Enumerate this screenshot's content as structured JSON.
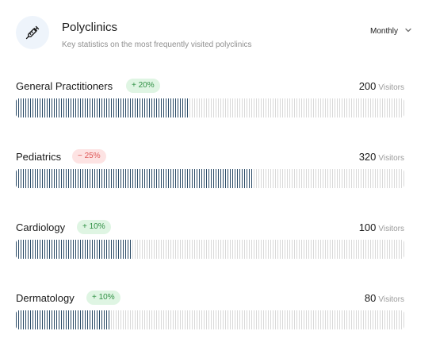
{
  "header": {
    "title": "Polyclinics",
    "subtitle": "Key statistics on the most frequently visited polyclinics",
    "icon": "syringe-icon",
    "period": "Monthly"
  },
  "colors": {
    "bar_fill": "#2b4b67",
    "bar_track": "#d9d9d9",
    "badge_up_bg": "#dff5e3",
    "badge_up_text": "#2f8f43",
    "badge_down_bg": "#fde3e3",
    "badge_down_text": "#de5656"
  },
  "clinics": [
    {
      "name": "General Practitioners",
      "change": "+ 20%",
      "trend": "up",
      "visitors": "200",
      "unit": "Visitors",
      "fill_fraction": 0.445
    },
    {
      "name": "Pediatrics",
      "change": "− 25%",
      "trend": "down",
      "visitors": "320",
      "unit": "Visitors",
      "fill_fraction": 0.61
    },
    {
      "name": "Cardiology",
      "change": "+ 10%",
      "trend": "up",
      "visitors": "100",
      "unit": "Visitors",
      "fill_fraction": 0.3
    },
    {
      "name": "Dermatology",
      "change": "+ 10%",
      "trend": "up",
      "visitors": "80",
      "unit": "Visitors",
      "fill_fraction": 0.245
    }
  ]
}
